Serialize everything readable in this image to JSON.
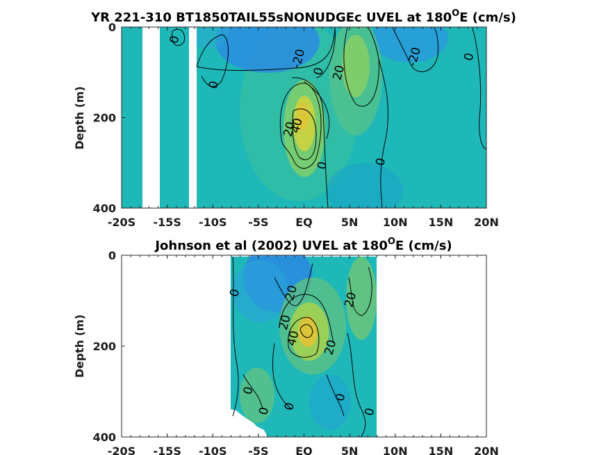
{
  "chart_data": [
    {
      "type": "heatmap",
      "title": "YR 221-310 BT1850TAIL55sNONUDGEc UVEL at 180",
      "title_sup": "O",
      "title_tail": "E (cm/s)",
      "ylabel": "Depth (m)",
      "xlim": [
        -20,
        20
      ],
      "ylim": [
        0,
        400
      ],
      "x_ticks": [
        "-20S",
        "-15S",
        "-10S",
        "-5S",
        "EQ",
        "5N",
        "10N",
        "15N",
        "20N"
      ],
      "y_ticks": [
        "0",
        "200",
        "400"
      ],
      "y_tick_values": [
        0,
        200,
        400
      ],
      "data_x_range": [
        -20,
        20
      ],
      "missing_columns": [
        [
          -17.5,
          -15.7
        ],
        [
          -12.6,
          -11.9
        ]
      ],
      "missing_regions": [
        [
          -18.0,
          -17.5,
          200,
          400
        ]
      ],
      "features": [
        {
          "kind": "core",
          "x": 0.2,
          "y": 215,
          "value": 45
        },
        {
          "kind": "core",
          "x": 6.0,
          "y": 70,
          "value": 25
        },
        {
          "kind": "trough",
          "x": -4.0,
          "y": 30,
          "value": -25
        },
        {
          "kind": "trough",
          "x": 12.0,
          "y": 30,
          "value": -18
        }
      ],
      "contour_labels": [
        {
          "text": "0",
          "x": -13.8,
          "y": 30
        },
        {
          "text": "0",
          "x": -9.5,
          "y": 130
        },
        {
          "text": "-20",
          "x": -0.2,
          "y": 72
        },
        {
          "text": "0",
          "x": 2.0,
          "y": 100
        },
        {
          "text": "20",
          "x": 4.2,
          "y": 103
        },
        {
          "text": "-20",
          "x": 12.5,
          "y": 68
        },
        {
          "text": "0",
          "x": 18.5,
          "y": 68
        },
        {
          "text": "20",
          "x": -1.2,
          "y": 228
        },
        {
          "text": "40",
          "x": -0.4,
          "y": 220
        },
        {
          "text": "0",
          "x": 2.4,
          "y": 308
        },
        {
          "text": "0",
          "x": 8.8,
          "y": 300
        }
      ]
    },
    {
      "type": "heatmap",
      "title": "Johnson et al (2002) UVEL at 180",
      "title_sup": "O",
      "title_tail": "E (cm/s)",
      "ylabel": "Depth (m)",
      "xlim": [
        -20,
        20
      ],
      "ylim": [
        0,
        400
      ],
      "x_ticks": [
        "-20S",
        "-15S",
        "-10S",
        "-5S",
        "EQ",
        "5N",
        "10N",
        "15N",
        "20N"
      ],
      "y_ticks": [
        "0",
        "200",
        "400"
      ],
      "y_tick_values": [
        0,
        200,
        400
      ],
      "data_x_range": [
        -8,
        8
      ],
      "features": [
        {
          "kind": "core",
          "x": 0.8,
          "y": 170,
          "value": 45
        },
        {
          "kind": "core",
          "x": 6.0,
          "y": 100,
          "value": 22
        },
        {
          "kind": "trough",
          "x": -3.0,
          "y": 50,
          "value": -25
        }
      ],
      "contour_labels": [
        {
          "text": "0",
          "x": -7.2,
          "y": 85
        },
        {
          "text": "20",
          "x": -1.0,
          "y": 85
        },
        {
          "text": "20",
          "x": 5.5,
          "y": 100
        },
        {
          "text": "20",
          "x": -1.7,
          "y": 150
        },
        {
          "text": "40",
          "x": -0.8,
          "y": 185
        },
        {
          "text": "20",
          "x": 3.3,
          "y": 205
        },
        {
          "text": "0",
          "x": -5.7,
          "y": 300
        },
        {
          "text": "0",
          "x": -4.0,
          "y": 345
        },
        {
          "text": "0",
          "x": -1.2,
          "y": 335
        },
        {
          "text": "0",
          "x": 4.4,
          "y": 315
        },
        {
          "text": "0",
          "x": 7.6,
          "y": 347
        }
      ]
    }
  ]
}
